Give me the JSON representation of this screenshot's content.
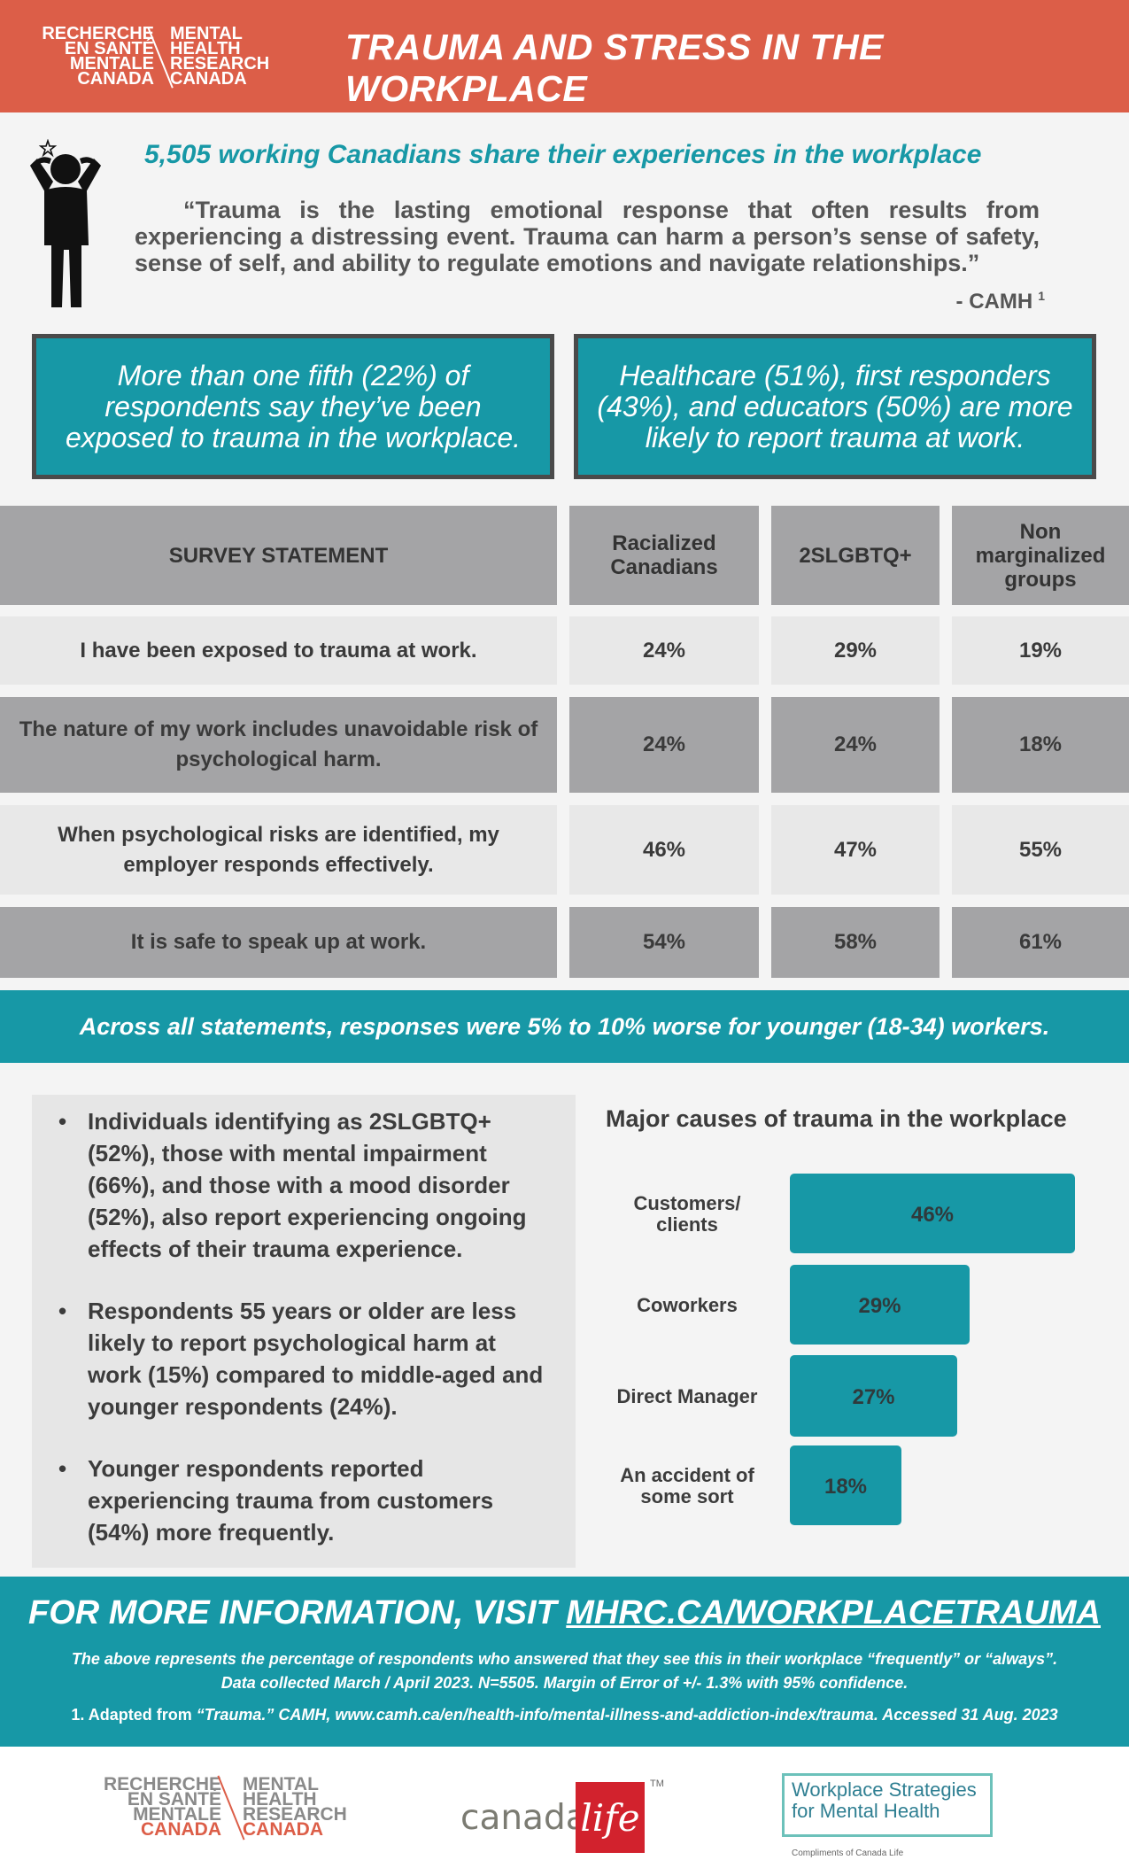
{
  "header": {
    "logo_left": [
      "RECHERCHE",
      "EN SANTÉ",
      "MENTALE",
      "CANADA"
    ],
    "logo_right": [
      "MENTAL",
      "HEALTH",
      "RESEARCH",
      "CANADA"
    ],
    "title": "TRAUMA AND STRESS IN THE WORKPLACE"
  },
  "intro": {
    "subtitle": "5,505 working Canadians share their experiences in the workplace",
    "quote": "“Trauma is the lasting emotional response that often results from experiencing a distressing event. Trauma can harm a person’s sense of safety, sense of self, and ability to regulate emotions and navigate relationships.”",
    "source": "- CAMH",
    "source_ref": "1",
    "figure_icon": "stressed-person-icon"
  },
  "callouts": [
    "More than one fifth (22%) of respondents say they’ve been exposed to trauma in the workplace.",
    "Healthcare (51%), first responders (43%), and educators (50%) are more likely to report trauma at work."
  ],
  "table": {
    "headers": [
      "SURVEY STATEMENT",
      "Racialized Canadians",
      "2SLGBTQ+",
      "Non marginalized groups"
    ],
    "rows": [
      {
        "statement": "I have been exposed to trauma at work.",
        "values": [
          "24%",
          "29%",
          "19%"
        ]
      },
      {
        "statement": "The nature of my work includes unavoidable risk of psychological harm.",
        "values": [
          "24%",
          "24%",
          "18%"
        ]
      },
      {
        "statement": "When psychological risks are identified, my employer responds effectively.",
        "values": [
          "46%",
          "47%",
          "55%"
        ]
      },
      {
        "statement": "It is safe to speak up at work.",
        "values": [
          "54%",
          "58%",
          "61%"
        ]
      }
    ]
  },
  "banner": "Across all statements, responses were 5% to 10% worse for younger (18-34) workers.",
  "bullets": [
    "Individuals identifying as 2SLGBTQ+ (52%), those with mental impairment (66%), and those with a mood disorder (52%), also report experiencing ongoing effects of their trauma experience.",
    "Respondents 55 years or older are less likely to report psychological harm at work (15%) compared to middle-aged and younger respondents (24%).",
    "Younger respondents reported experiencing trauma from customers (54%) more frequently."
  ],
  "chart_data": {
    "type": "bar",
    "orientation": "horizontal",
    "title": "Major causes of trauma in the workplace",
    "categories": [
      "Customers/ clients",
      "Coworkers",
      "Direct Manager",
      "An accident of some sort"
    ],
    "values": [
      46,
      29,
      27,
      18
    ],
    "value_labels": [
      "46%",
      "29%",
      "27%",
      "18%"
    ],
    "bar_color": "#1798a6",
    "grid": false,
    "legend": "none"
  },
  "info": {
    "heading_prefix": "FOR MORE INFORMATION, VISIT",
    "heading_link": "MHRC.CA/WORKPLACETRAUMA",
    "note_line1": "The above represents the percentage of respondents who answered that they see this in their workplace “frequently” or “always”.",
    "note_line2": "Data collected March / April 2023.  N=5505.  Margin of Error of +/- 1.3% with 95% confidence.",
    "ref_num": "1.",
    "ref_prefix": "Adapted from",
    "ref_text": "“Trauma.” CAMH, www.camh.ca/en/health-info/mental-illness-and-addiction-index/trauma. Accessed 31 Aug. 2023"
  },
  "bottom_logos": {
    "mhrc_left": [
      "RECHERCHE",
      "EN SANTÉ",
      "MENTALE",
      "CANADA"
    ],
    "mhrc_right": [
      "MENTAL",
      "HEALTH",
      "RESEARCH",
      "CANADA"
    ],
    "canada_life_word": "canada",
    "canada_life_mark": "life",
    "canada_life_tm": "TM",
    "wsmh_line1": "Workplace Strategies",
    "wsmh_line2": "for Mental Health",
    "wsmh_sub": "Compliments of Canada Life"
  },
  "colors": {
    "brand_red": "#dc5e48",
    "teal": "#1798a6",
    "table_gray": "#a4a4a6",
    "light_gray": "#e8e8e8"
  }
}
